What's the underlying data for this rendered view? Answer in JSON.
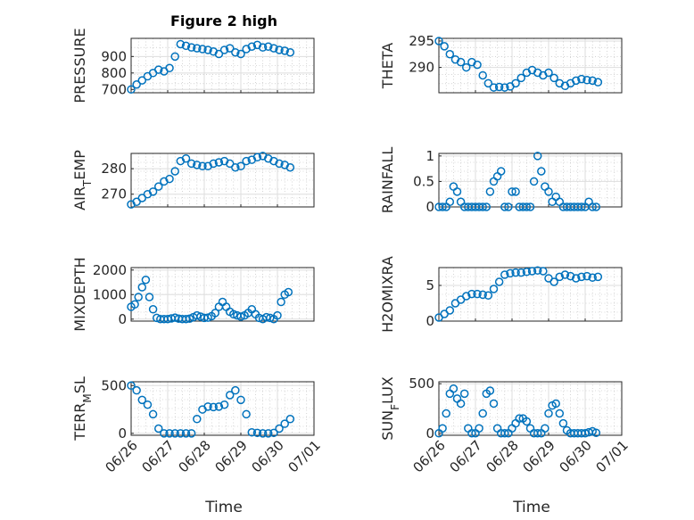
{
  "figure": {
    "title": "Figure 2 high",
    "xlabel": "Time",
    "date_ticks": [
      "06/26",
      "06/27",
      "06/28",
      "06/29",
      "06/30",
      "07/01"
    ],
    "marker_color": "#0072BD"
  },
  "chart_data": [
    {
      "type": "scatter",
      "ylabel": "PRESSURE",
      "ylim": [
        680,
        1010
      ],
      "yticks": [
        700,
        800,
        900
      ],
      "xlim": [
        "06/26",
        "07/01"
      ],
      "x": [
        0,
        0.15,
        0.3,
        0.45,
        0.6,
        0.75,
        0.9,
        1.05,
        1.2,
        1.35,
        1.5,
        1.65,
        1.8,
        1.95,
        2.1,
        2.25,
        2.4,
        2.55,
        2.7,
        2.85,
        3,
        3.15,
        3.3,
        3.45,
        3.6,
        3.75,
        3.9,
        4.05,
        4.2,
        4.35
      ],
      "y": [
        700,
        730,
        755,
        780,
        800,
        820,
        810,
        830,
        900,
        975,
        965,
        955,
        950,
        945,
        940,
        930,
        915,
        940,
        950,
        925,
        915,
        945,
        960,
        970,
        955,
        960,
        950,
        940,
        935,
        925
      ]
    },
    {
      "type": "scatter",
      "ylabel": "THETA",
      "ylim": [
        285.2,
        295.5
      ],
      "yticks": [
        290,
        295
      ],
      "xlim": [
        "06/26",
        "07/01"
      ],
      "x": [
        0,
        0.15,
        0.3,
        0.45,
        0.6,
        0.75,
        0.9,
        1.05,
        1.2,
        1.35,
        1.5,
        1.65,
        1.8,
        1.95,
        2.1,
        2.25,
        2.4,
        2.55,
        2.7,
        2.85,
        3,
        3.15,
        3.3,
        3.45,
        3.6,
        3.75,
        3.9,
        4.05,
        4.2,
        4.35
      ],
      "y": [
        295,
        294,
        292.5,
        291.5,
        291,
        290,
        291,
        290.5,
        288.5,
        287,
        286.2,
        286.3,
        286.2,
        286.4,
        287,
        288,
        289,
        289.5,
        289,
        288.5,
        289,
        288,
        287,
        286.5,
        287,
        287.5,
        287.8,
        287.6,
        287.5,
        287.2
      ]
    },
    {
      "type": "scatter",
      "ylabel": "AIR_TEMP",
      "ylim": [
        265,
        286
      ],
      "yticks": [
        270,
        280
      ],
      "xlim": [
        "06/26",
        "07/01"
      ],
      "x": [
        0,
        0.15,
        0.3,
        0.45,
        0.6,
        0.75,
        0.9,
        1.05,
        1.2,
        1.35,
        1.5,
        1.65,
        1.8,
        1.95,
        2.1,
        2.25,
        2.4,
        2.55,
        2.7,
        2.85,
        3,
        3.15,
        3.3,
        3.45,
        3.6,
        3.75,
        3.9,
        4.05,
        4.2,
        4.35
      ],
      "y": [
        266,
        267,
        268.5,
        270,
        271,
        273,
        275,
        276,
        279,
        283,
        284,
        282,
        281.5,
        281,
        281,
        282,
        282.5,
        283,
        282,
        280.5,
        281,
        283,
        283.5,
        284.5,
        285,
        284,
        283,
        282,
        281.5,
        280.5
      ]
    },
    {
      "type": "scatter",
      "ylabel": "RAINFALL",
      "ylim": [
        0,
        1.05
      ],
      "yticks": [
        0,
        0.5,
        1
      ],
      "xlim": [
        "06/26",
        "07/01"
      ],
      "x": [
        0,
        0.1,
        0.2,
        0.3,
        0.4,
        0.5,
        0.6,
        0.7,
        0.8,
        0.9,
        1,
        1.1,
        1.2,
        1.3,
        1.4,
        1.5,
        1.6,
        1.7,
        1.8,
        1.9,
        2,
        2.1,
        2.2,
        2.3,
        2.4,
        2.5,
        2.6,
        2.7,
        2.8,
        2.9,
        3,
        3.1,
        3.2,
        3.3,
        3.4,
        3.5,
        3.6,
        3.7,
        3.8,
        3.9,
        4,
        4.1,
        4.2,
        4.3
      ],
      "y": [
        0,
        0,
        0,
        0.1,
        0.4,
        0.3,
        0.1,
        0,
        0,
        0,
        0,
        0,
        0,
        0,
        0.3,
        0.5,
        0.6,
        0.7,
        0,
        0,
        0.3,
        0.3,
        0,
        0,
        0,
        0,
        0.5,
        1,
        0.7,
        0.4,
        0.3,
        0.1,
        0.2,
        0.1,
        0,
        0,
        0,
        0,
        0,
        0,
        0,
        0.1,
        0,
        0
      ]
    },
    {
      "type": "scatter",
      "ylabel": "MIXDEPTH",
      "ylim": [
        -80,
        2100
      ],
      "yticks": [
        0,
        1000,
        2000
      ],
      "xlim": [
        "06/26",
        "07/01"
      ],
      "x": [
        0,
        0.1,
        0.2,
        0.3,
        0.4,
        0.5,
        0.6,
        0.7,
        0.8,
        0.9,
        1,
        1.1,
        1.2,
        1.3,
        1.4,
        1.5,
        1.6,
        1.7,
        1.8,
        1.9,
        2,
        2.1,
        2.2,
        2.3,
        2.4,
        2.5,
        2.6,
        2.7,
        2.8,
        2.9,
        3,
        3.1,
        3.2,
        3.3,
        3.4,
        3.5,
        3.6,
        3.7,
        3.8,
        3.9,
        4,
        4.1,
        4.2,
        4.3
      ],
      "y": [
        500,
        600,
        900,
        1300,
        1600,
        900,
        400,
        50,
        0,
        0,
        0,
        30,
        60,
        20,
        0,
        0,
        20,
        80,
        150,
        100,
        50,
        60,
        120,
        250,
        500,
        700,
        500,
        300,
        200,
        150,
        100,
        150,
        250,
        400,
        200,
        50,
        0,
        80,
        50,
        0,
        150,
        700,
        1000,
        1100
      ]
    },
    {
      "type": "scatter",
      "ylabel": "H2OMIXRA",
      "ylim": [
        0,
        7.5
      ],
      "yticks": [
        0,
        5
      ],
      "xlim": [
        "06/26",
        "07/01"
      ],
      "x": [
        0,
        0.15,
        0.3,
        0.45,
        0.6,
        0.75,
        0.9,
        1.05,
        1.2,
        1.35,
        1.5,
        1.65,
        1.8,
        1.95,
        2.1,
        2.25,
        2.4,
        2.55,
        2.7,
        2.85,
        3,
        3.15,
        3.3,
        3.45,
        3.6,
        3.75,
        3.9,
        4.05,
        4.2,
        4.35
      ],
      "y": [
        0.5,
        1,
        1.5,
        2.5,
        3,
        3.5,
        3.8,
        3.8,
        3.7,
        3.6,
        4.5,
        5.5,
        6.5,
        6.7,
        6.8,
        6.8,
        6.9,
        7,
        7.1,
        7,
        6,
        5.5,
        6.2,
        6.5,
        6.3,
        6,
        6.2,
        6.3,
        6.1,
        6.2
      ]
    },
    {
      "type": "scatter",
      "ylabel": "TERR_MSL",
      "ylim": [
        -20,
        540
      ],
      "yticks": [
        0,
        500
      ],
      "xlim": [
        "06/26",
        "07/01"
      ],
      "x": [
        0,
        0.15,
        0.3,
        0.45,
        0.6,
        0.75,
        0.9,
        1.05,
        1.2,
        1.35,
        1.5,
        1.65,
        1.8,
        1.95,
        2.1,
        2.25,
        2.4,
        2.55,
        2.7,
        2.85,
        3,
        3.15,
        3.3,
        3.45,
        3.6,
        3.75,
        3.9,
        4.05,
        4.2,
        4.35
      ],
      "y": [
        500,
        450,
        350,
        300,
        200,
        50,
        0,
        0,
        0,
        0,
        0,
        0,
        150,
        250,
        280,
        275,
        280,
        300,
        400,
        450,
        350,
        200,
        10,
        5,
        0,
        0,
        5,
        50,
        100,
        150
      ]
    },
    {
      "type": "scatter",
      "ylabel": "SUN_FLUX",
      "ylim": [
        -20,
        520
      ],
      "yticks": [
        0,
        500
      ],
      "xlim": [
        "06/26",
        "07/01"
      ],
      "x": [
        0,
        0.1,
        0.2,
        0.3,
        0.4,
        0.5,
        0.6,
        0.7,
        0.8,
        0.9,
        1,
        1.1,
        1.2,
        1.3,
        1.4,
        1.5,
        1.6,
        1.7,
        1.8,
        1.9,
        2,
        2.1,
        2.2,
        2.3,
        2.4,
        2.5,
        2.6,
        2.7,
        2.8,
        2.9,
        3,
        3.1,
        3.2,
        3.3,
        3.4,
        3.5,
        3.6,
        3.7,
        3.8,
        3.9,
        4,
        4.1,
        4.2,
        4.3
      ],
      "y": [
        0,
        50,
        200,
        400,
        450,
        350,
        300,
        400,
        50,
        0,
        0,
        50,
        200,
        400,
        430,
        300,
        50,
        0,
        0,
        0,
        50,
        100,
        150,
        150,
        120,
        50,
        0,
        0,
        0,
        50,
        200,
        280,
        300,
        200,
        100,
        30,
        0,
        0,
        0,
        0,
        0,
        10,
        20,
        5
      ]
    }
  ]
}
